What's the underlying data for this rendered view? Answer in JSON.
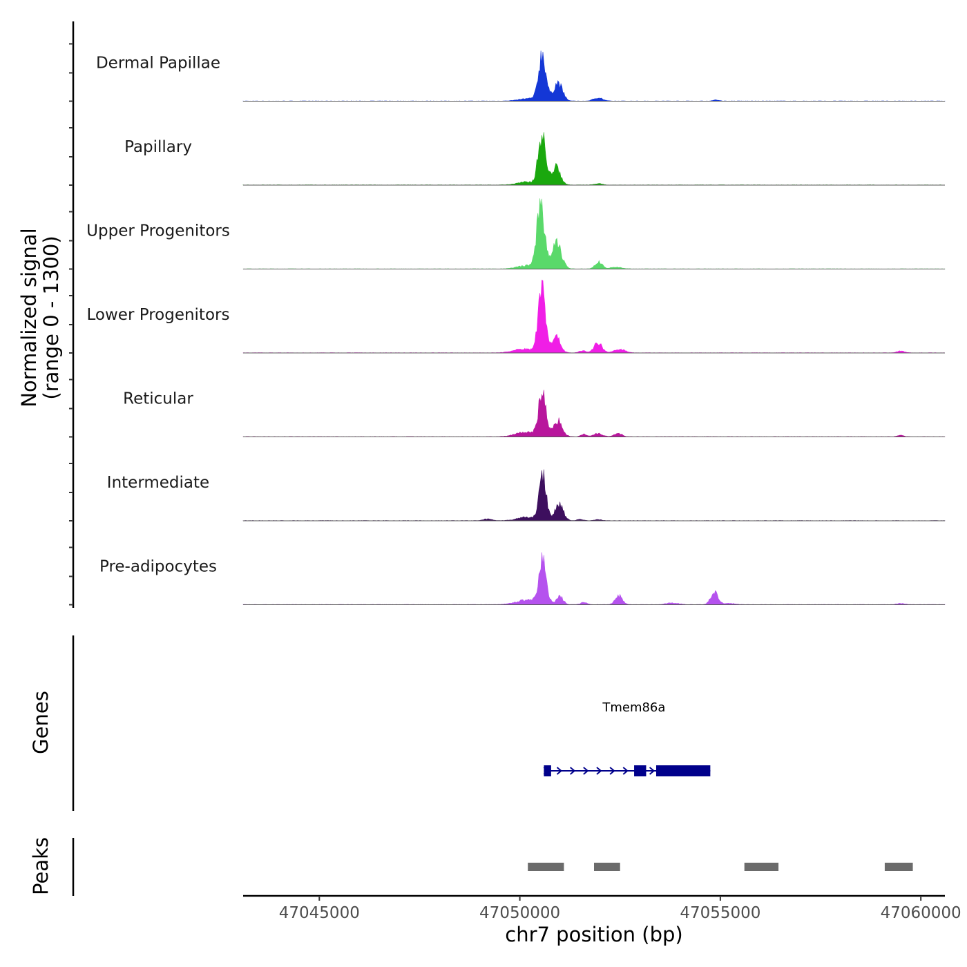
{
  "chart_data": {
    "type": "area",
    "title": "",
    "chromosome": "chr7",
    "xlabel": "chr7 position (bp)",
    "ylabel_line1": "Normalized signal",
    "ylabel_line2": "(range 0 - 1300)",
    "xlim": [
      47043100,
      47060600
    ],
    "ylim": [
      0,
      1300
    ],
    "x_ticks": [
      47045000,
      47050000,
      47055000,
      47060000
    ],
    "x_tick_labels": [
      "47045000",
      "47050000",
      "47055000",
      "47060000"
    ],
    "series": [
      {
        "name": "Dermal Papillae",
        "color": "#1437d6",
        "peaks": [
          [
            47050560,
            1100,
            90
          ],
          [
            47050950,
            430,
            110
          ],
          [
            47051950,
            80,
            110
          ],
          [
            47050250,
            60,
            250
          ],
          [
            47054900,
            25,
            80
          ]
        ]
      },
      {
        "name": "Papillary",
        "color": "#1aa80e",
        "peaks": [
          [
            47050550,
            1180,
            90
          ],
          [
            47050900,
            420,
            110
          ],
          [
            47050200,
            70,
            250
          ],
          [
            47051950,
            30,
            100
          ]
        ]
      },
      {
        "name": "Upper Progenitors",
        "color": "#5ad96a",
        "peaks": [
          [
            47050520,
            1610,
            90
          ],
          [
            47050920,
            600,
            120
          ],
          [
            47051970,
            160,
            90
          ],
          [
            47050200,
            80,
            250
          ],
          [
            47052400,
            40,
            140
          ]
        ]
      },
      {
        "name": "Lower Progenitors",
        "color": "#f01ee6",
        "peaks": [
          [
            47050550,
            1580,
            90
          ],
          [
            47050900,
            370,
            110
          ],
          [
            47051950,
            230,
            100
          ],
          [
            47052500,
            80,
            140
          ],
          [
            47050100,
            90,
            250
          ],
          [
            47051560,
            50,
            80
          ],
          [
            47059500,
            40,
            100
          ]
        ]
      },
      {
        "name": "Reticular",
        "color": "#b8169c",
        "peaks": [
          [
            47050560,
            1040,
            90
          ],
          [
            47050950,
            380,
            110
          ],
          [
            47051950,
            80,
            110
          ],
          [
            47052450,
            80,
            100
          ],
          [
            47050150,
            110,
            250
          ],
          [
            47051600,
            60,
            70
          ],
          [
            47059500,
            30,
            80
          ]
        ]
      },
      {
        "name": "Intermediate",
        "color": "#3d0f5e",
        "peaks": [
          [
            47050570,
            1060,
            90
          ],
          [
            47050980,
            410,
            100
          ],
          [
            47050150,
            80,
            220
          ],
          [
            47049200,
            40,
            100
          ],
          [
            47051500,
            30,
            80
          ],
          [
            47051950,
            30,
            80
          ]
        ]
      },
      {
        "name": "Pre-adipocytes",
        "color": "#b552ee",
        "peaks": [
          [
            47050570,
            970,
            90
          ],
          [
            47051000,
            190,
            80
          ],
          [
            47052470,
            210,
            90
          ],
          [
            47054850,
            300,
            90
          ],
          [
            47050250,
            120,
            300
          ],
          [
            47051600,
            50,
            80
          ],
          [
            47053800,
            40,
            150
          ],
          [
            47055200,
            30,
            150
          ],
          [
            47059500,
            30,
            100
          ]
        ]
      }
    ],
    "genes_label": "Genes",
    "gene": {
      "name": "Tmem86a",
      "strand": "+",
      "color": "#00008b",
      "start": 47050600,
      "end": 47054750,
      "exons": [
        [
          47050600,
          47050780
        ],
        [
          47052850,
          47053150
        ],
        [
          47053400,
          47054750
        ]
      ]
    },
    "peaks_label": "Peaks",
    "peak_regions": [
      [
        47050200,
        47051100
      ],
      [
        47051850,
        47052500
      ],
      [
        47055600,
        47056450
      ],
      [
        47059100,
        47059800
      ]
    ],
    "peak_color": "#6b6b6b"
  }
}
